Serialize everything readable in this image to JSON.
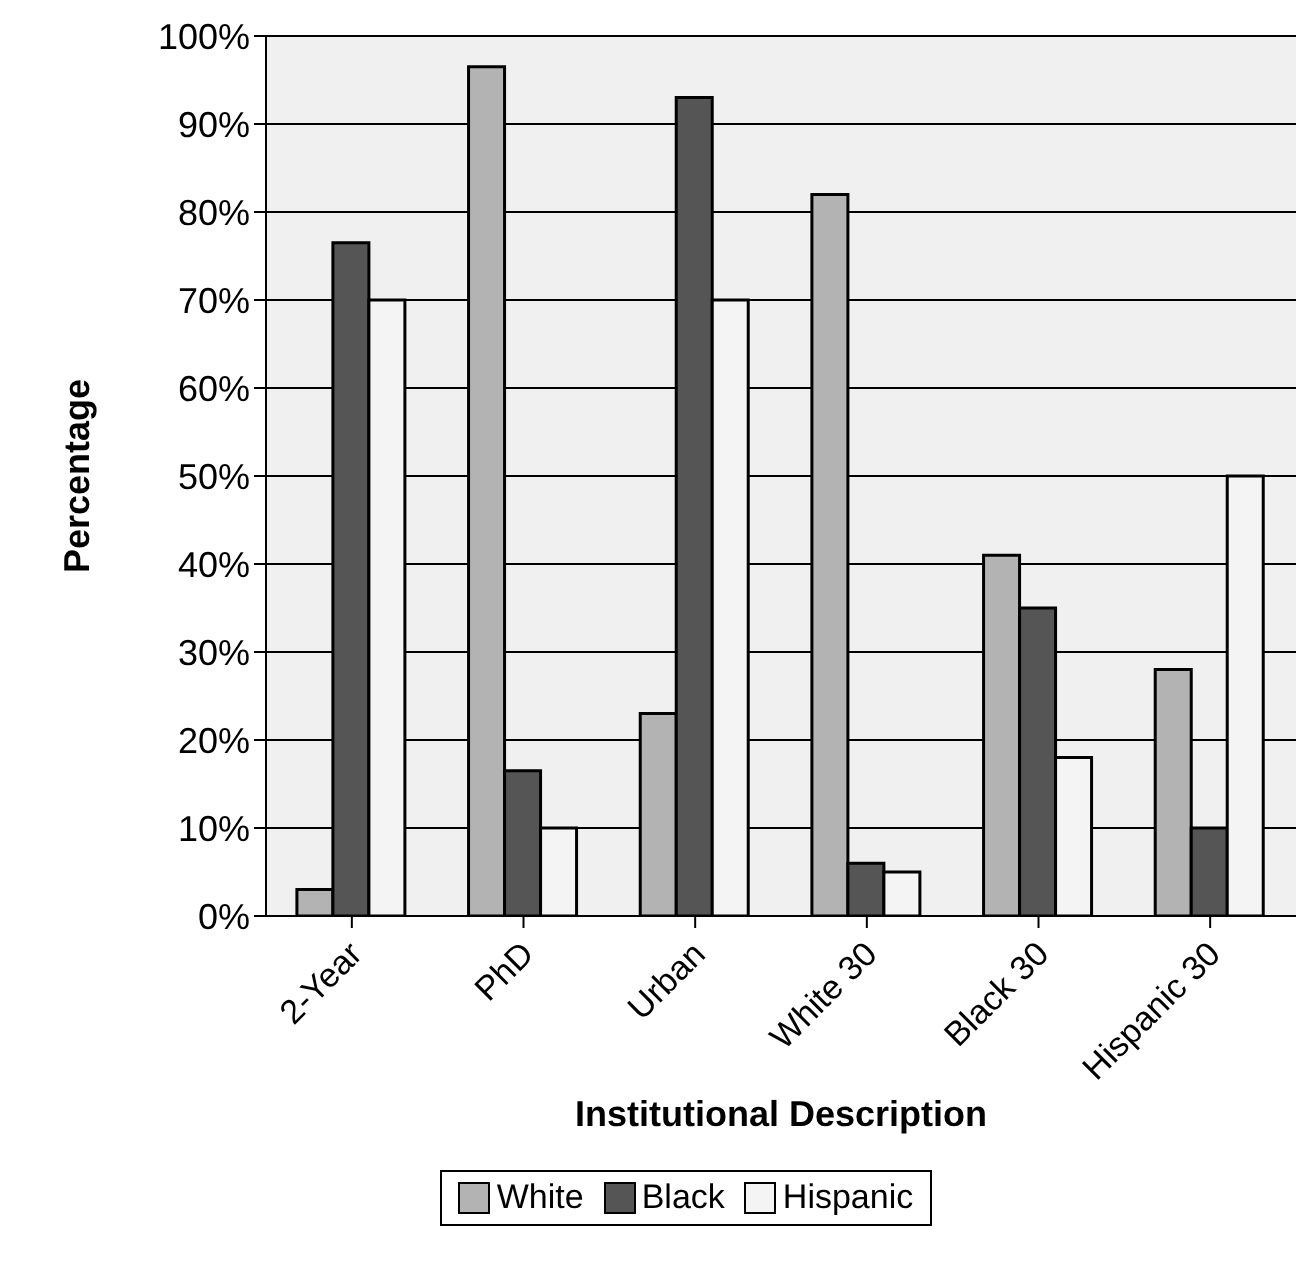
{
  "chart_data": {
    "type": "bar",
    "xlabel": "Institutional Description",
    "ylabel": "Percentage",
    "categories": [
      "2-Year",
      "PhD",
      "Urban",
      "White 30",
      "Black 30",
      "Hispanic 30"
    ],
    "series": [
      {
        "name": "White",
        "color": "#b3b3b3",
        "values": [
          3,
          96.5,
          23,
          82,
          41,
          28
        ]
      },
      {
        "name": "Black",
        "color": "#555555",
        "values": [
          76.5,
          16.5,
          93,
          6,
          35,
          10
        ]
      },
      {
        "name": "Hispanic",
        "color": "#f4f4f4",
        "values": [
          70,
          10,
          70,
          5,
          18,
          50
        ]
      }
    ],
    "ylim": [
      0,
      100
    ],
    "yticks": [
      {
        "value": 0,
        "label": "0%"
      },
      {
        "value": 10,
        "label": "10%"
      },
      {
        "value": 20,
        "label": "20%"
      },
      {
        "value": 30,
        "label": "30%"
      },
      {
        "value": 40,
        "label": "40%"
      },
      {
        "value": 50,
        "label": "50%"
      },
      {
        "value": 60,
        "label": "60%"
      },
      {
        "value": 70,
        "label": "70%"
      },
      {
        "value": 80,
        "label": "80%"
      },
      {
        "value": 90,
        "label": "90%"
      },
      {
        "value": 100,
        "label": "100%"
      }
    ],
    "grid": "y",
    "legend": "bottom"
  }
}
